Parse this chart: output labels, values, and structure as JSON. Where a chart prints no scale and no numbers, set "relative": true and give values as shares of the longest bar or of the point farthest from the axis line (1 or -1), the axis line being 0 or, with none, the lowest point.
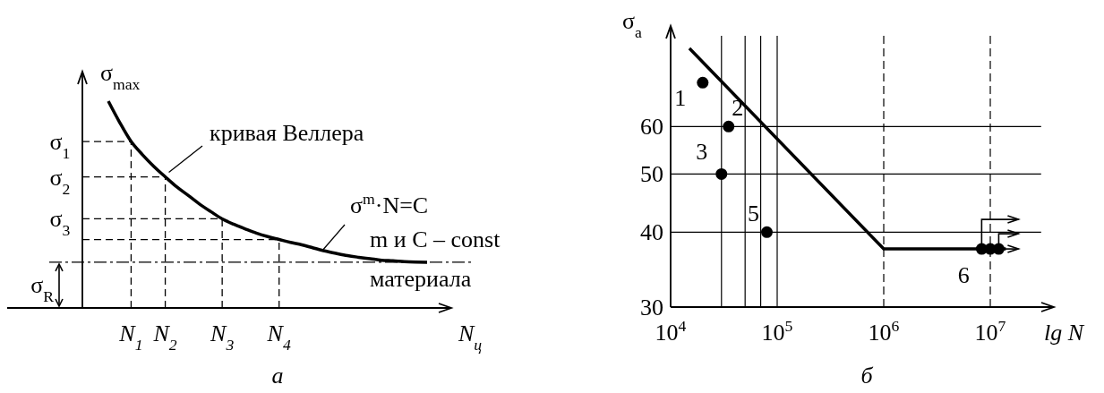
{
  "chart_data": [
    {
      "type": "line",
      "relative": true,
      "categories": [
        null,
        null,
        "N$_{1}$",
        null,
        null,
        "N$_{2}$",
        null,
        null,
        null,
        null,
        "N$_{3}$",
        null,
        null,
        null,
        null,
        "N$_{4}$",
        null,
        null,
        null,
        null,
        null,
        null,
        null,
        null,
        null,
        null,
        null,
        null,
        null
      ],
      "values": [
        1.0,
        0.897,
        0.805,
        0.741,
        0.684,
        0.634,
        0.586,
        0.545,
        0.503,
        0.466,
        0.431,
        0.405,
        0.383,
        0.362,
        0.345,
        0.331,
        0.317,
        0.305,
        0.29,
        0.276,
        0.264,
        0.253,
        0.245,
        0.238,
        0.231,
        0.228,
        0.224,
        0.222,
        0.221
      ],
      "color": "#000000",
      "xlabel": "N$_{ц}$",
      "ylabel": "σ$_{max}$",
      "ref_lines": [
        {
          "axis": "y",
          "value": 0.221,
          "label": "σ$_{R}$",
          "line_style": "dashed"
        }
      ],
      "annotations": [
        "σ$_{1}$",
        "σ$_{2}$",
        "σ$_{3}$",
        "кривая Веллера",
        "σ$^{m}$·N=C",
        "m и C – const",
        "материала",
        "а"
      ]
    },
    {
      "type": "scatter",
      "log": "xy",
      "xlim": [
        10000,
        30000000
      ],
      "ylim": [
        30,
        85
      ],
      "xticks": [
        {
          "value": 10000,
          "label": "10$^{4}$"
        },
        {
          "value": 100000,
          "label": "10$^{5}$"
        },
        {
          "value": 1000000,
          "label": "10$^{6}$"
        },
        {
          "value": 10000000,
          "label": "10$^{7}$"
        }
      ],
      "yticks": [
        30,
        40,
        50,
        60
      ],
      "grid": "y",
      "xlabel": "lg N",
      "ylabel": "σ$_{a}$",
      "series": [
        {
          "type": "line",
          "x": [
            15000,
            1000000,
            14000000
          ],
          "values": [
            81,
            37.5,
            37.5
          ],
          "color": "#000000"
        },
        {
          "x": [
            20000,
            35000,
            30000,
            80000,
            8300000,
            10000000,
            12000000
          ],
          "values": [
            71,
            60,
            50,
            40,
            37.5,
            37.5,
            37.5
          ],
          "color": "#000000",
          "marker": "circle"
        }
      ],
      "ref_lines": [
        {
          "axis": "x",
          "value": 30000
        },
        {
          "axis": "x",
          "value": 50000
        },
        {
          "axis": "x",
          "value": 70000
        },
        {
          "axis": "x",
          "value": 100000
        },
        {
          "axis": "x",
          "value": 1000000,
          "line_style": "dashed"
        },
        {
          "axis": "x",
          "value": 10000000,
          "line_style": "dashed"
        }
      ],
      "annotations": [
        {
          "text": "1",
          "x": 20000,
          "y": 71
        },
        {
          "text": "2",
          "x": 35000,
          "y": 60
        },
        {
          "text": "3",
          "x": 30000,
          "y": 50
        },
        {
          "text": "5",
          "x": 80000,
          "y": 40
        },
        {
          "text": "6",
          "x": 8300000,
          "y": 37.5
        },
        "б"
      ]
    }
  ]
}
